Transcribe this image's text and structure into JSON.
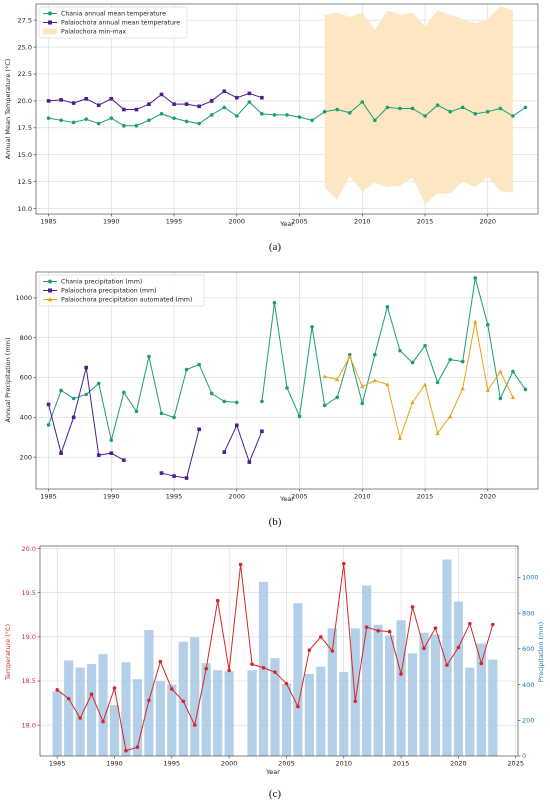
{
  "colors": {
    "chania": "#1a9e77",
    "palaiochora": "#4b1f8f",
    "automated": "#e8a317",
    "range_fill": "#fde6c2",
    "temp_red": "#d62728",
    "precip_bar": "#a6c8e4",
    "precip_axis": "#1f77b4",
    "grid": "#d0d0d0"
  },
  "chart_data": [
    {
      "type": "line",
      "panel_label": "(a)",
      "xlabel": "Year",
      "ylabel": "Annual Mean Temperature (°C)",
      "xlim": [
        1984,
        2024
      ],
      "ylim": [
        9.5,
        29.0
      ],
      "xticks": [
        1985,
        1990,
        1995,
        2000,
        2005,
        2010,
        2015,
        2020
      ],
      "yticks": [
        10.0,
        12.5,
        15.0,
        17.5,
        20.0,
        22.5,
        25.0,
        27.5
      ],
      "yticks_text": [
        "10.0",
        "12.5",
        "15.0",
        "17.5",
        "20.0",
        "22.5",
        "25.0",
        "27.5"
      ],
      "grid": true,
      "legend_position": "upper-left",
      "series": [
        {
          "name": "Chania annual mean temperature",
          "marker": "circle",
          "color_key": "chania",
          "x": [
            1985,
            1986,
            1987,
            1988,
            1989,
            1990,
            1991,
            1992,
            1993,
            1994,
            1995,
            1996,
            1997,
            1998,
            1999,
            2000,
            2001,
            2002,
            2003,
            2004,
            2005,
            2006,
            2007,
            2008,
            2009,
            2010,
            2011,
            2012,
            2013,
            2014,
            2015,
            2016,
            2017,
            2018,
            2019,
            2020,
            2021,
            2022,
            2023
          ],
          "y": [
            18.4,
            18.2,
            18.0,
            18.3,
            17.9,
            18.4,
            17.7,
            17.7,
            18.2,
            18.8,
            18.4,
            18.1,
            17.9,
            18.7,
            19.4,
            18.6,
            19.9,
            18.8,
            18.7,
            18.7,
            18.5,
            18.2,
            19.0,
            19.2,
            18.9,
            19.9,
            18.2,
            19.4,
            19.3,
            19.3,
            18.6,
            19.6,
            19.0,
            19.4,
            18.8,
            19.0,
            19.3,
            18.6,
            19.4
          ]
        },
        {
          "name": "Palaiochora annual mean temperature",
          "marker": "square",
          "color_key": "palaiochora",
          "x": [
            1985,
            1986,
            1987,
            1988,
            1989,
            1990,
            1991,
            1992,
            1993,
            1994,
            1995,
            1996,
            1997,
            1998,
            1999,
            2000,
            2001,
            2002
          ],
          "y": [
            20.0,
            20.1,
            19.8,
            20.2,
            19.6,
            20.2,
            19.2,
            19.2,
            19.7,
            20.6,
            19.7,
            19.7,
            19.5,
            20.0,
            20.9,
            20.3,
            20.7,
            20.3
          ]
        }
      ],
      "range_band": {
        "name": "Palaiochora min-max",
        "color_key": "range_fill",
        "x": [
          2007,
          2008,
          2009,
          2010,
          2011,
          2012,
          2013,
          2014,
          2015,
          2016,
          2017,
          2018,
          2019,
          2020,
          2021,
          2022
        ],
        "ymin": [
          12.0,
          10.8,
          13.0,
          11.6,
          12.4,
          12.0,
          12.1,
          12.9,
          10.4,
          11.4,
          11.4,
          12.5,
          12.0,
          13.0,
          11.6,
          11.5
        ],
        "ymax": [
          28.0,
          28.2,
          27.8,
          28.2,
          26.6,
          28.4,
          28.0,
          28.2,
          26.9,
          28.4,
          28.0,
          27.6,
          27.2,
          27.6,
          28.8,
          28.4
        ]
      }
    },
    {
      "type": "line",
      "panel_label": "(b)",
      "xlabel": "Year",
      "ylabel": "Annual Precipitation (mm)",
      "xlim": [
        1984,
        2024
      ],
      "ylim": [
        40,
        1130
      ],
      "xticks": [
        1985,
        1990,
        1995,
        2000,
        2005,
        2010,
        2015,
        2020
      ],
      "yticks": [
        200,
        400,
        600,
        800,
        1000
      ],
      "grid": true,
      "legend_position": "upper-left",
      "series": [
        {
          "name": "Chania precipitation (mm)",
          "marker": "circle",
          "color_key": "chania",
          "segments": [
            {
              "x": [
                1985,
                1986,
                1987,
                1988,
                1989,
                1990,
                1991,
                1992,
                1993,
                1994,
                1995,
                1996,
                1997,
                1998,
                1999,
                2000
              ],
              "y": [
                362,
                535,
                495,
                515,
                570,
                285,
                525,
                430,
                705,
                420,
                400,
                640,
                665,
                520,
                480,
                475
              ]
            },
            {
              "x": [
                2002,
                2003,
                2004,
                2005,
                2006,
                2007,
                2008,
                2009,
                2010,
                2011,
                2012,
                2013,
                2014,
                2015,
                2016,
                2017,
                2018,
                2019,
                2020,
                2021,
                2022,
                2023
              ],
              "y": [
                480,
                975,
                548,
                405,
                855,
                460,
                500,
                715,
                470,
                715,
                955,
                735,
                675,
                760,
                575,
                690,
                680,
                1100,
                865,
                495,
                630,
                540
              ]
            }
          ]
        },
        {
          "name": "Palaiochora precipitation (mm)",
          "marker": "square",
          "color_key": "palaiochora",
          "segments": [
            {
              "x": [
                1985,
                1986,
                1987,
                1988,
                1989,
                1990,
                1991
              ],
              "y": [
                465,
                220,
                400,
                650,
                210,
                220,
                185
              ]
            },
            {
              "x": [
                1994,
                1995,
                1996,
                1997
              ],
              "y": [
                120,
                105,
                95,
                340
              ]
            },
            {
              "x": [
                1999,
                2000,
                2001,
                2002
              ],
              "y": [
                225,
                360,
                175,
                330
              ]
            }
          ]
        },
        {
          "name": "Palaiochora precipitation automated (mm)",
          "marker": "triangle",
          "color_key": "automated",
          "segments": [
            {
              "x": [
                2007,
                2008,
                2009,
                2010,
                2011,
                2012,
                2013,
                2014,
                2015,
                2016,
                2017,
                2018,
                2019,
                2020,
                2021,
                2022
              ],
              "y": [
                605,
                590,
                705,
                555,
                585,
                565,
                295,
                475,
                565,
                320,
                405,
                545,
                880,
                535,
                630,
                500
              ]
            }
          ]
        }
      ]
    },
    {
      "type": "bar",
      "panel_label": "(c)",
      "xlabel": "Year",
      "ylabel_left": "Temperature (°C)",
      "ylabel_right": "Precipitation (mm)",
      "xlim": [
        1983.5,
        2025.2
      ],
      "ylim_left": [
        17.65,
        20.03
      ],
      "ylim_right": [
        0,
        1176
      ],
      "xticks": [
        1985,
        1990,
        1995,
        2000,
        2005,
        2010,
        2015,
        2020,
        2025
      ],
      "yticks_left": [
        18.0,
        18.5,
        19.0,
        19.5,
        20.0
      ],
      "yticks_left_text": [
        "18.0",
        "18.5",
        "19.0",
        "19.5",
        "20.0"
      ],
      "yticks_right": [
        0,
        200,
        400,
        600,
        800,
        1000
      ],
      "grid": true,
      "precip_bars": {
        "x": [
          1985,
          1986,
          1987,
          1988,
          1989,
          1990,
          1991,
          1992,
          1993,
          1994,
          1995,
          1996,
          1997,
          1998,
          1999,
          2000,
          2002,
          2003,
          2004,
          2005,
          2006,
          2007,
          2008,
          2009,
          2010,
          2011,
          2012,
          2013,
          2014,
          2015,
          2016,
          2017,
          2018,
          2019,
          2020,
          2021,
          2022,
          2023
        ],
        "values": [
          362,
          535,
          495,
          515,
          570,
          285,
          525,
          430,
          705,
          420,
          400,
          640,
          665,
          520,
          480,
          475,
          480,
          975,
          548,
          405,
          855,
          460,
          500,
          715,
          470,
          715,
          955,
          735,
          675,
          760,
          575,
          690,
          680,
          1100,
          865,
          495,
          630,
          540
        ]
      },
      "temperature_line": {
        "x": [
          1985,
          1986,
          1987,
          1988,
          1989,
          1990,
          1991,
          1992,
          1993,
          1994,
          1995,
          1996,
          1997,
          1998,
          1999,
          2000,
          2001,
          2002,
          2003,
          2004,
          2005,
          2006,
          2007,
          2008,
          2009,
          2010,
          2011,
          2012,
          2013,
          2014,
          2015,
          2016,
          2017,
          2018,
          2019,
          2020,
          2021,
          2022,
          2023
        ],
        "y": [
          18.4,
          18.3,
          18.08,
          18.35,
          18.04,
          18.42,
          17.71,
          17.75,
          18.28,
          18.72,
          18.41,
          18.27,
          18.0,
          18.64,
          19.41,
          18.62,
          19.82,
          18.69,
          18.65,
          18.6,
          18.47,
          18.21,
          18.85,
          19.0,
          18.84,
          19.83,
          18.27,
          19.11,
          19.07,
          19.06,
          18.58,
          19.34,
          18.87,
          19.1,
          18.68,
          18.88,
          19.15,
          18.7,
          19.14
        ]
      }
    }
  ]
}
